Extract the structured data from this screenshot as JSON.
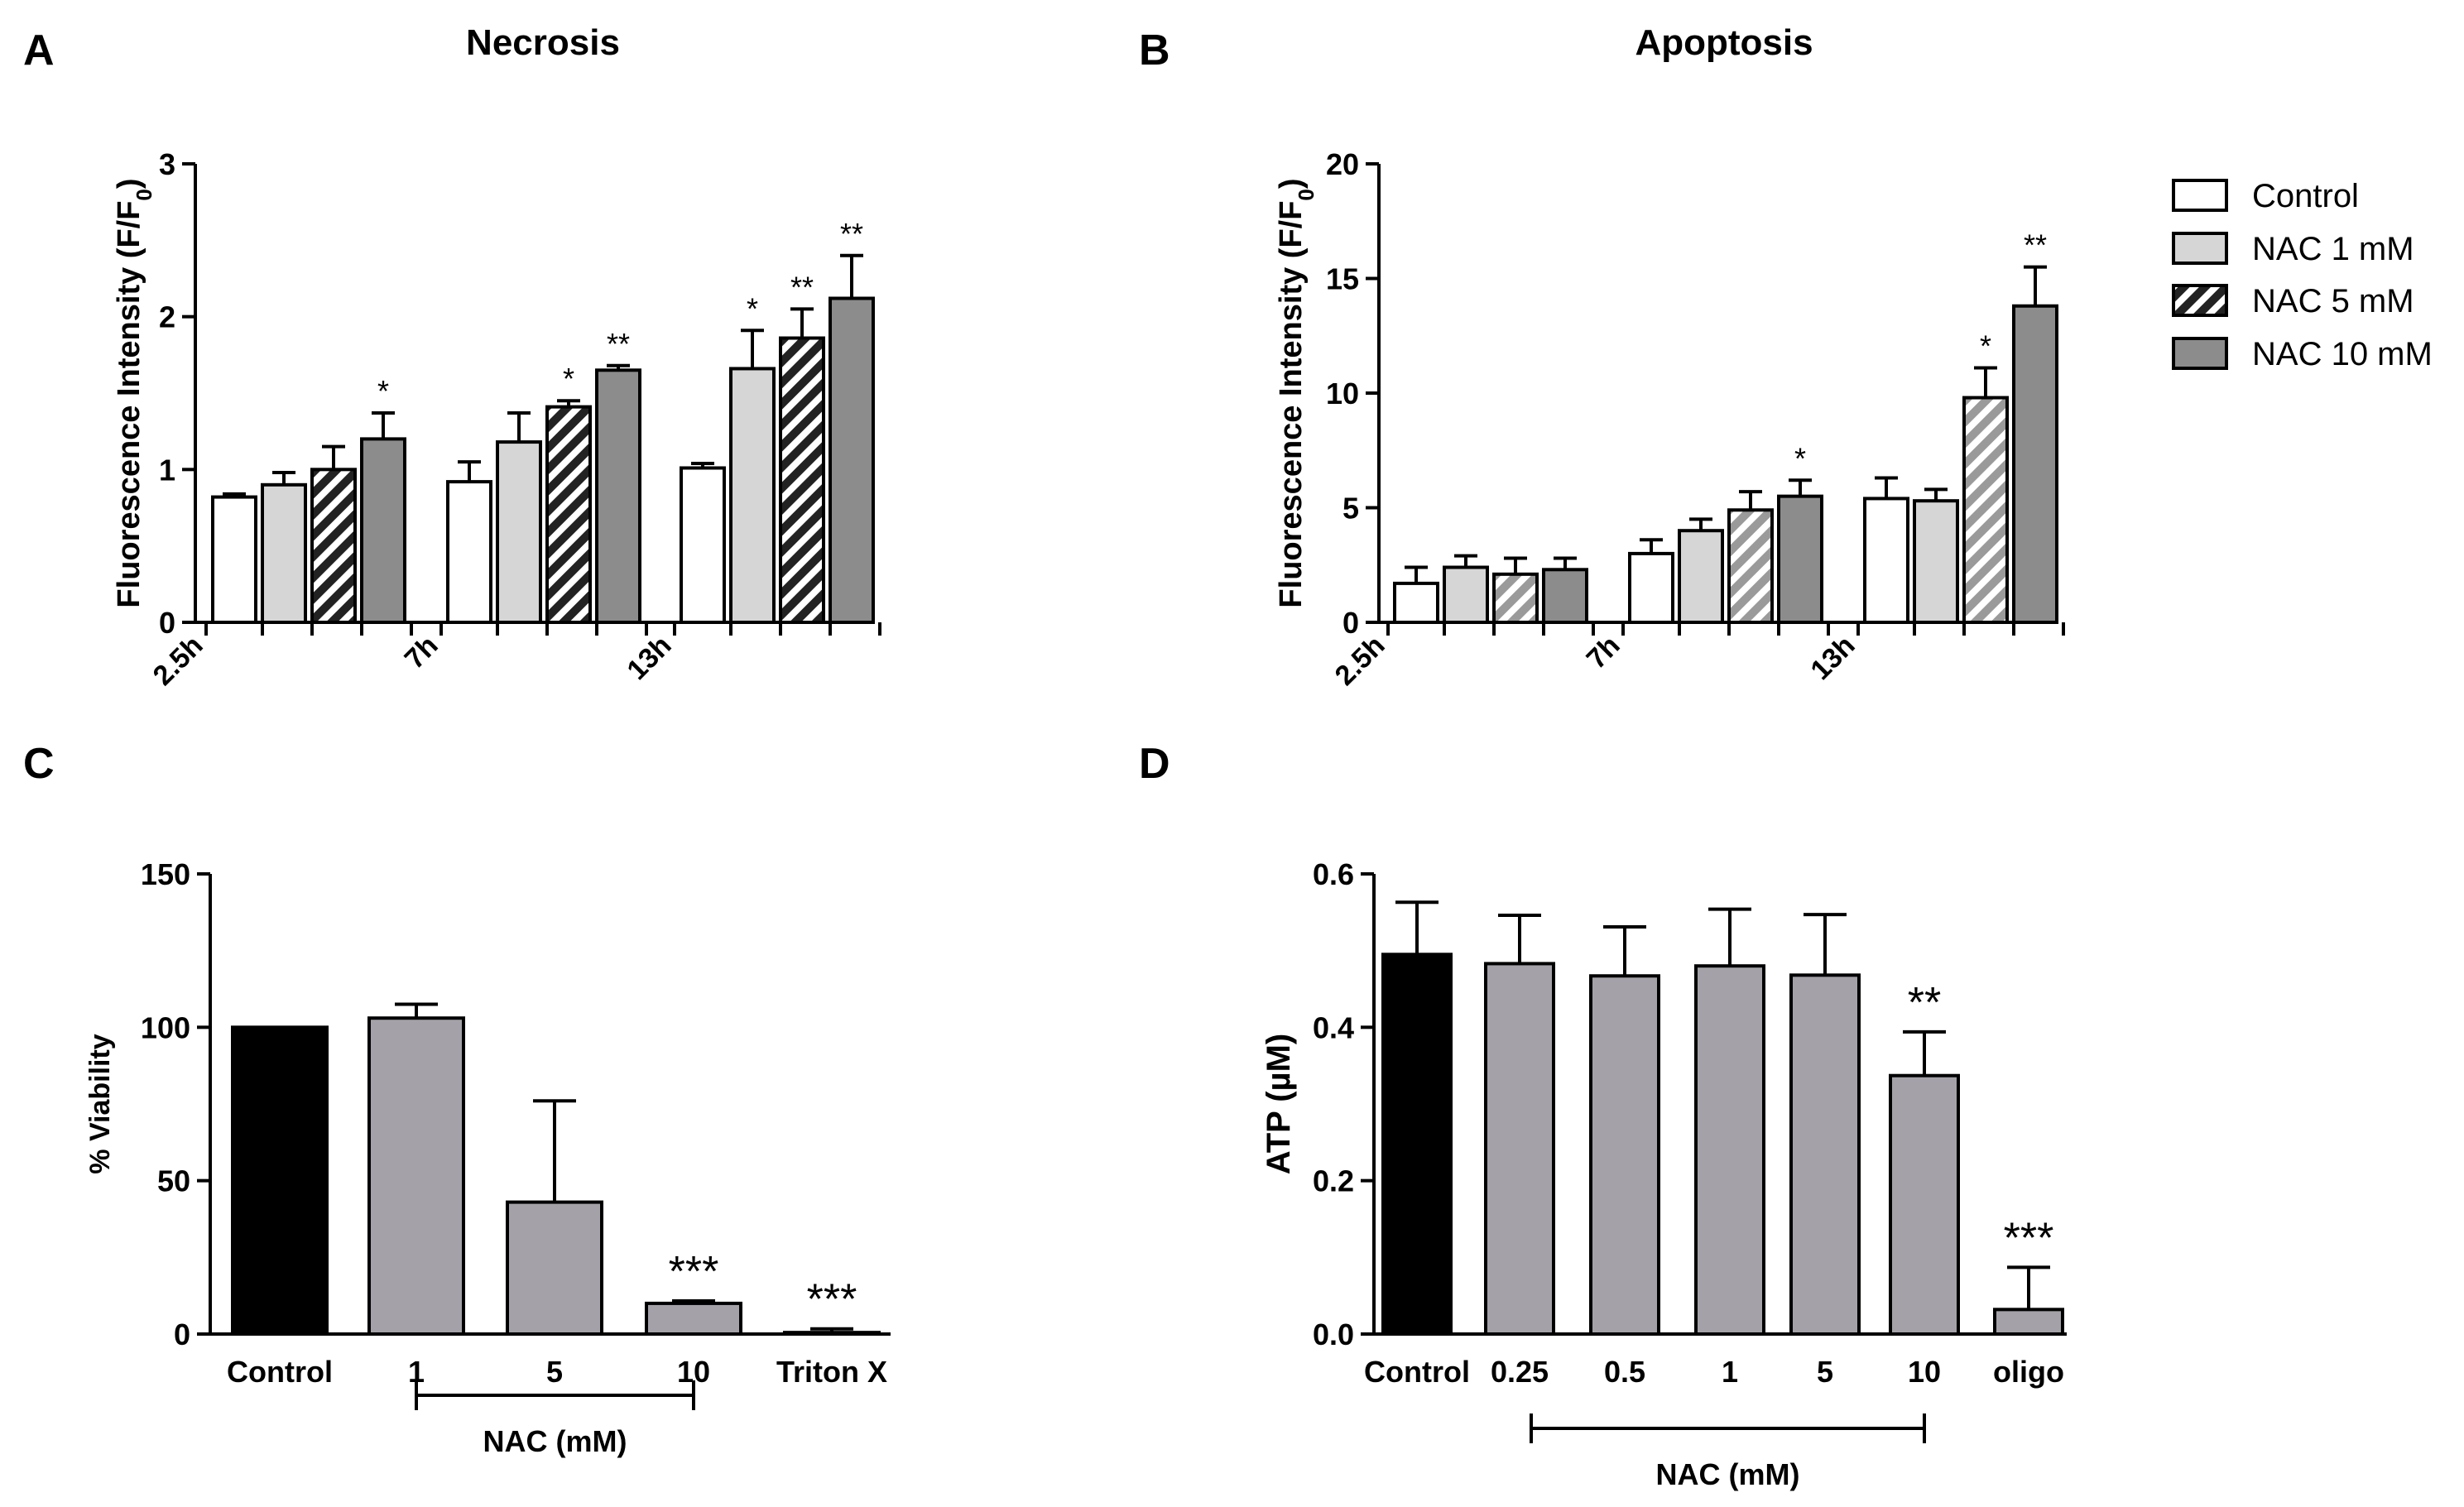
{
  "chart_data": [
    {
      "panel": "A",
      "type": "bar",
      "title": "Necrosis",
      "xlabel": "",
      "ylabel_main": "Fluorescence Intensity (F/F",
      "ylabel_sub": "0",
      "ylabel_close": ")",
      "ylim": [
        0,
        3
      ],
      "yticks": [
        0,
        1,
        2,
        3
      ],
      "categories": [
        "2.5h",
        "7h",
        "13h"
      ],
      "series": [
        {
          "name": "Control",
          "values": [
            0.82,
            0.92,
            1.01
          ],
          "errors": [
            0.02,
            0.13,
            0.03
          ],
          "sig": [
            "",
            "",
            ""
          ]
        },
        {
          "name": "NAC 1 mM",
          "values": [
            0.9,
            1.18,
            1.66
          ],
          "errors": [
            0.08,
            0.19,
            0.25
          ],
          "sig": [
            "",
            "",
            "*"
          ]
        },
        {
          "name": "NAC 5 mM",
          "values": [
            1.0,
            1.41,
            1.86
          ],
          "errors": [
            0.15,
            0.04,
            0.19
          ],
          "sig": [
            "",
            "*",
            "**"
          ]
        },
        {
          "name": "NAC 10 mM",
          "values": [
            1.2,
            1.65,
            2.12
          ],
          "errors": [
            0.17,
            0.03,
            0.28
          ],
          "sig": [
            "*",
            "**",
            "**"
          ]
        }
      ]
    },
    {
      "panel": "B",
      "type": "bar",
      "title": "Apoptosis",
      "xlabel": "",
      "ylabel_main": "Fluorescence Intensity (F/F",
      "ylabel_sub": "0",
      "ylabel_close": ")",
      "ylim": [
        0,
        20
      ],
      "yticks": [
        0,
        5,
        10,
        15,
        20
      ],
      "categories": [
        "2.5h",
        "7h",
        "13h"
      ],
      "series": [
        {
          "name": "Control",
          "values": [
            1.7,
            3.0,
            5.4
          ],
          "errors": [
            0.7,
            0.6,
            0.9
          ],
          "sig": [
            "",
            "",
            ""
          ]
        },
        {
          "name": "NAC 1 mM",
          "values": [
            2.4,
            4.0,
            5.3
          ],
          "errors": [
            0.5,
            0.5,
            0.5
          ],
          "sig": [
            "",
            "",
            ""
          ]
        },
        {
          "name": "NAC 5 mM",
          "values": [
            2.1,
            4.9,
            9.8
          ],
          "errors": [
            0.7,
            0.8,
            1.3
          ],
          "sig": [
            "",
            "",
            "*"
          ]
        },
        {
          "name": "NAC 10 mM",
          "values": [
            2.3,
            5.5,
            13.8
          ],
          "errors": [
            0.5,
            0.7,
            1.7
          ],
          "sig": [
            "",
            "*",
            "**"
          ]
        }
      ]
    },
    {
      "panel": "C",
      "type": "bar",
      "title": "",
      "xlabel": "",
      "ylabel": "% Viability",
      "ylim": [
        0,
        150
      ],
      "yticks": [
        0,
        50,
        100,
        150
      ],
      "categories": [
        "Control",
        "1",
        "5",
        "10",
        "Triton X"
      ],
      "values": [
        100,
        103,
        43,
        10,
        0.5
      ],
      "errors": [
        0,
        4.5,
        33,
        0.8,
        1.2
      ],
      "sig": [
        "",
        "",
        "",
        "***",
        "***"
      ],
      "bracket_label": "NAC (mM)",
      "bracket_range": [
        "1",
        "10"
      ]
    },
    {
      "panel": "D",
      "type": "bar",
      "title": "",
      "xlabel": "",
      "ylabel": "ATP (µM)",
      "ylim": [
        0,
        0.6
      ],
      "yticks": [
        "0.0",
        "0.2",
        "0.4",
        "0.6"
      ],
      "categories": [
        "Control",
        "0.25",
        "0.5",
        "1",
        "5",
        "10",
        "oligo"
      ],
      "values": [
        0.495,
        0.483,
        0.467,
        0.48,
        0.468,
        0.337,
        0.032
      ],
      "errors": [
        0.068,
        0.063,
        0.064,
        0.074,
        0.079,
        0.057,
        0.055
      ],
      "sig": [
        "",
        "",
        "",
        "",
        "",
        "**",
        "***"
      ],
      "bracket_label": "NAC (mM)",
      "bracket_range": [
        "0.25",
        "10"
      ]
    }
  ],
  "legend": {
    "items": [
      "Control",
      "NAC 1 mM",
      "NAC 5 mM",
      "NAC 10 mM"
    ]
  },
  "colors": {
    "control_fill": "#ffffff",
    "nac1_fill": "#d6d6d6",
    "nac5_hatch": "#b0b0b0",
    "nac10_fill": "#8c8c8c",
    "black_bar": "#000000",
    "gray_bar": "#a4a2a8",
    "axis": "#000000"
  }
}
